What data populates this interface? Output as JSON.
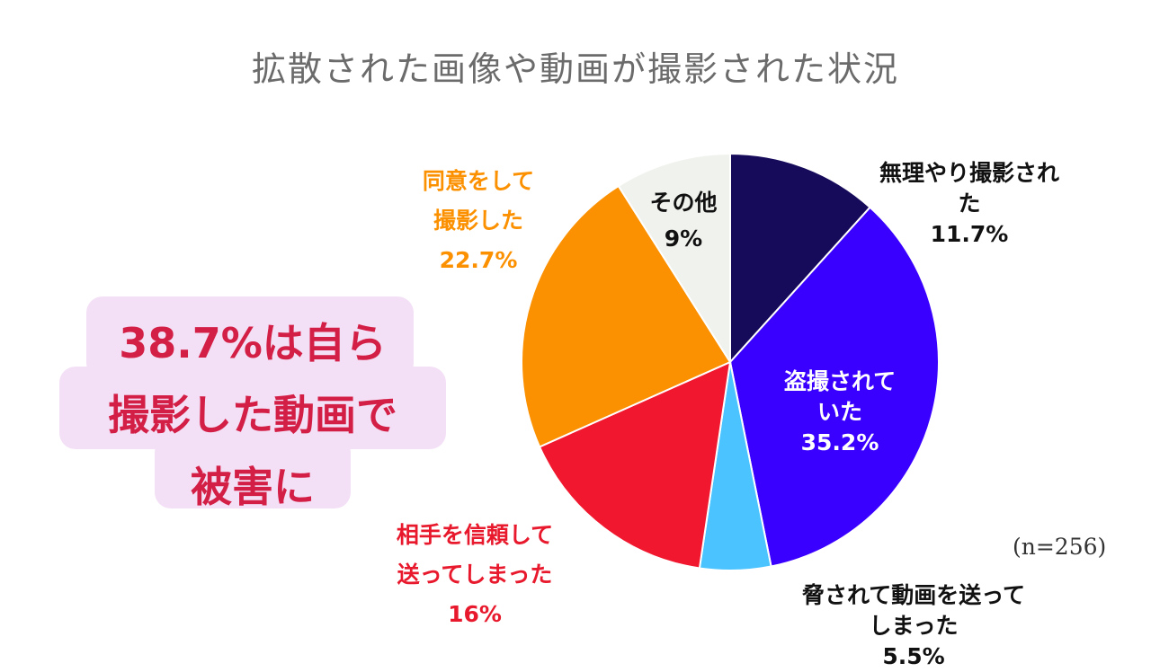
{
  "title": "拡散された画像や動画が撮影された状況",
  "sample_size": "(n=256)",
  "callout": "38.7%は自ら\n撮影した動画で\n被害に",
  "chart_data": {
    "type": "pie",
    "title": "拡散された画像や動画が撮影された状況",
    "slices": [
      {
        "label": "無理やり撮影された",
        "value": 11.7,
        "value_label": "11.7%",
        "color": "#160a5a",
        "label_color": "#111111"
      },
      {
        "label": "盗撮されて\nいた",
        "value": 35.2,
        "value_label": "35.2%",
        "color": "#3a00ff",
        "label_color": "#ffffff"
      },
      {
        "label": "脅されて動画を送ってしまった",
        "value": 5.5,
        "value_label": "5.5%",
        "color": "#4bc3ff",
        "label_color": "#111111"
      },
      {
        "label": "相手を信頼して\n送ってしまった",
        "value": 16,
        "value_label": "16%",
        "color": "#f0172e",
        "label_color": "#e8192c"
      },
      {
        "label": "同意をして\n撮影した",
        "value": 22.7,
        "value_label": "22.7%",
        "color": "#fb9000",
        "label_color": "#fb9000"
      },
      {
        "label": "その他",
        "value": 9,
        "value_label": "9%",
        "color": "#f0f3ed",
        "label_color": "#111111"
      }
    ]
  }
}
